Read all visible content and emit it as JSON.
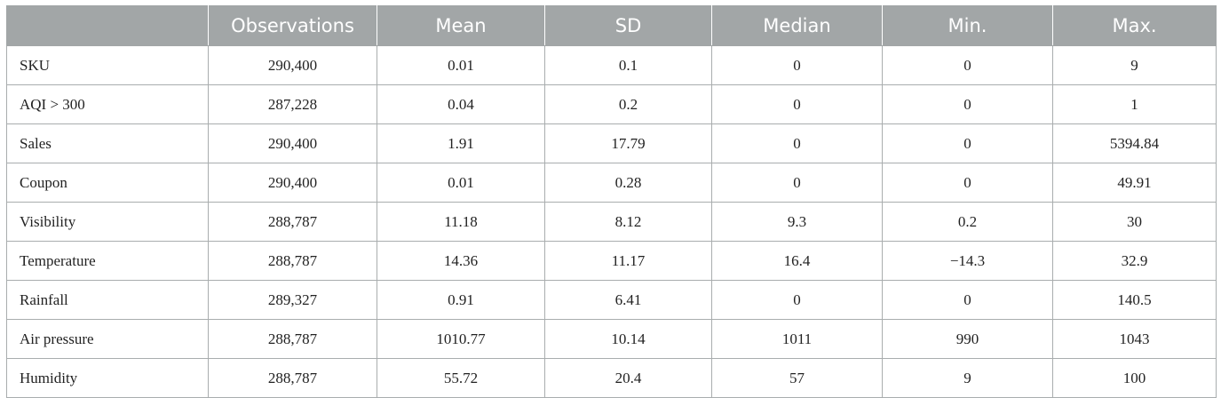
{
  "table": {
    "columns": [
      "",
      "Observations",
      "Mean",
      "SD",
      "Median",
      "Min.",
      "Max."
    ],
    "rows": [
      {
        "label": "SKU",
        "values": [
          "290,400",
          "0.01",
          "0.1",
          "0",
          "0",
          "9"
        ]
      },
      {
        "label": "AQI > 300",
        "values": [
          "287,228",
          "0.04",
          "0.2",
          "0",
          "0",
          "1"
        ]
      },
      {
        "label": "Sales",
        "values": [
          "290,400",
          "1.91",
          "17.79",
          "0",
          "0",
          "5394.84"
        ]
      },
      {
        "label": "Coupon",
        "values": [
          "290,400",
          "0.01",
          "0.28",
          "0",
          "0",
          "49.91"
        ]
      },
      {
        "label": "Visibility",
        "values": [
          "288,787",
          "11.18",
          "8.12",
          "9.3",
          "0.2",
          "30"
        ]
      },
      {
        "label": "Temperature",
        "values": [
          "288,787",
          "14.36",
          "11.17",
          "16.4",
          "−14.3",
          "32.9"
        ]
      },
      {
        "label": "Rainfall",
        "values": [
          "289,327",
          "0.91",
          "6.41",
          "0",
          "0",
          "140.5"
        ]
      },
      {
        "label": "Air pressure",
        "values": [
          "288,787",
          "1010.77",
          "10.14",
          "1011",
          "990",
          "1043"
        ]
      },
      {
        "label": "Humidity",
        "values": [
          "288,787",
          "55.72",
          "20.4",
          "57",
          "9",
          "100"
        ]
      }
    ]
  },
  "colors": {
    "header_background": "#a2a6a7",
    "header_text": "#ffffff",
    "grid_line": "#a9adae"
  }
}
